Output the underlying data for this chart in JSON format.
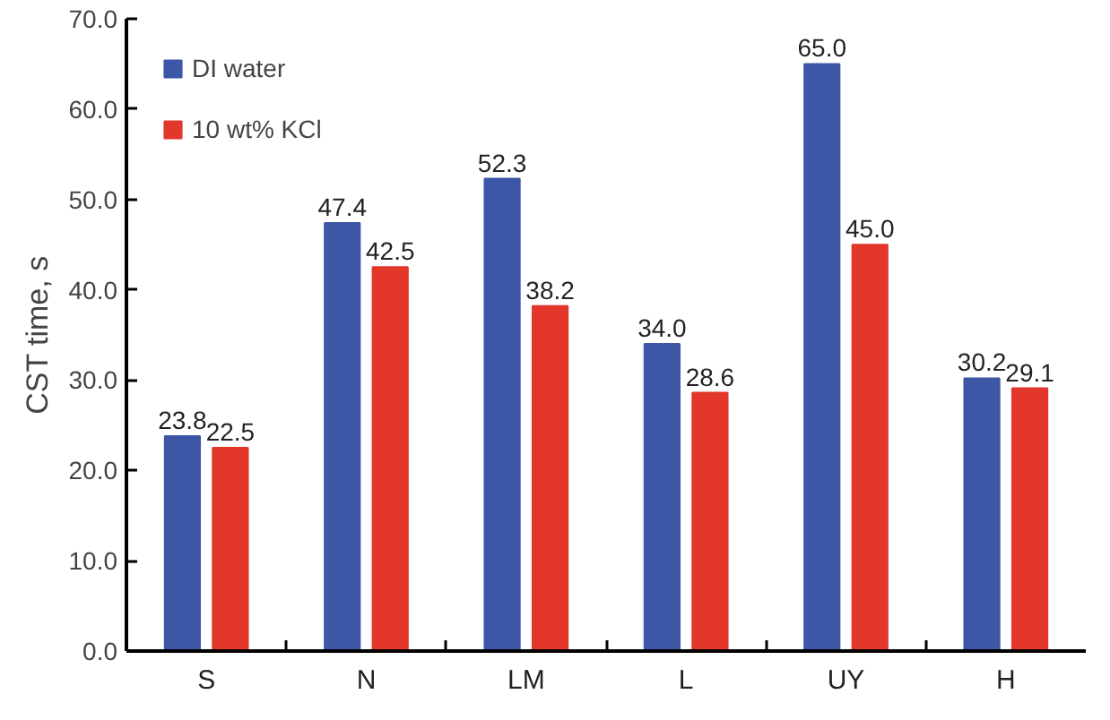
{
  "chart_data": {
    "type": "bar",
    "ylabel": "CST time, s",
    "categories": [
      "S",
      "N",
      "LM",
      "L",
      "UY",
      "H"
    ],
    "series": [
      {
        "name": "DI water",
        "color": "#3d57a6",
        "values": [
          23.8,
          47.4,
          52.3,
          34.0,
          65.0,
          30.2
        ]
      },
      {
        "name": "10 wt% KCl",
        "color": "#e2372a",
        "values": [
          22.5,
          42.5,
          38.2,
          28.6,
          45.0,
          29.1
        ]
      }
    ],
    "value_labels": [
      [
        "23.8",
        "47.4",
        "52.3",
        "34.0",
        "65.0",
        "30.2"
      ],
      [
        "22.5",
        "42.5",
        "38.2",
        "28.6",
        "45.0",
        "29.1"
      ]
    ],
    "ylim": [
      0,
      70
    ],
    "yticks": [
      {
        "value": 0,
        "label": "0.0"
      },
      {
        "value": 10,
        "label": "10.0"
      },
      {
        "value": 20,
        "label": "20.0"
      },
      {
        "value": 30,
        "label": "30.0"
      },
      {
        "value": 40,
        "label": "40.0"
      },
      {
        "value": 50,
        "label": "50.0"
      },
      {
        "value": 60,
        "label": "60.0"
      },
      {
        "value": 70,
        "label": "70.0"
      }
    ],
    "grid": false,
    "legend": "top left"
  }
}
